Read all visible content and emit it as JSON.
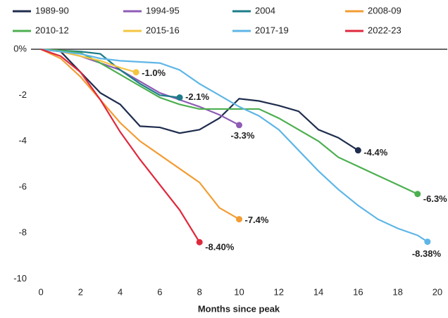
{
  "chart_data": {
    "type": "line",
    "xlabel": "Months since peak",
    "xlim": [
      -0.5,
      20.5
    ],
    "xticks": [
      0,
      2,
      4,
      6,
      8,
      10,
      12,
      14,
      16,
      18,
      20
    ],
    "ylim": [
      -10.2,
      0.4
    ],
    "yticks": [
      {
        "value": 0,
        "label": "0%"
      },
      -2,
      -4,
      -6,
      -8,
      -10
    ],
    "grid": false,
    "legend": "top",
    "series": [
      {
        "name": "1989-90",
        "color": "#1f2d4e",
        "x": [
          0,
          1,
          2,
          3,
          4,
          5,
          6,
          7,
          8,
          9,
          10,
          11,
          12,
          13,
          14,
          15,
          16
        ],
        "values": [
          0,
          -0.1,
          -1.0,
          -1.9,
          -2.4,
          -3.35,
          -3.4,
          -3.65,
          -3.5,
          -3.0,
          -2.15,
          -2.25,
          -2.45,
          -2.7,
          -3.5,
          -3.85,
          -4.4
        ],
        "value_labels": [
          null,
          null,
          null,
          null,
          null,
          null,
          null,
          null,
          null,
          null,
          null,
          null,
          null,
          null,
          null,
          null,
          "-4.4%"
        ]
      },
      {
        "name": "1994-95",
        "color": "#8e5bb5",
        "x": [
          0,
          1,
          2,
          3,
          4,
          5,
          6,
          7,
          8,
          9,
          10
        ],
        "values": [
          0,
          -0.1,
          -0.3,
          -0.6,
          -0.9,
          -1.4,
          -1.9,
          -2.2,
          -2.5,
          -2.85,
          -3.3
        ],
        "value_labels": [
          null,
          null,
          null,
          null,
          null,
          null,
          null,
          null,
          null,
          null,
          "-3.3%"
        ]
      },
      {
        "name": "2004",
        "color": "#1c7c89",
        "x": [
          0,
          1,
          2,
          3,
          4,
          5,
          6,
          7
        ],
        "values": [
          0,
          -0.05,
          -0.1,
          -0.2,
          -0.9,
          -1.5,
          -2.0,
          -2.1
        ],
        "value_labels": [
          null,
          null,
          null,
          null,
          null,
          null,
          null,
          "-2.1%"
        ]
      },
      {
        "name": "2008-09",
        "color": "#f39c33",
        "x": [
          0,
          1,
          2,
          3,
          4,
          5,
          6,
          7,
          8,
          9,
          10
        ],
        "values": [
          0,
          -0.4,
          -1.2,
          -2.2,
          -3.2,
          -4.0,
          -4.6,
          -5.2,
          -5.8,
          -6.9,
          -7.4
        ],
        "value_labels": [
          null,
          null,
          null,
          null,
          null,
          null,
          null,
          null,
          null,
          null,
          "-7.4%"
        ]
      },
      {
        "name": "2010-12",
        "color": "#4caf50",
        "x": [
          0,
          1,
          2,
          3,
          4,
          5,
          6,
          7,
          8,
          9,
          10,
          11,
          12,
          13,
          14,
          15,
          16,
          17,
          18,
          19
        ],
        "values": [
          0,
          -0.05,
          -0.15,
          -0.6,
          -1.1,
          -1.6,
          -2.1,
          -2.4,
          -2.6,
          -2.6,
          -2.6,
          -2.6,
          -3.0,
          -3.5,
          -4.0,
          -4.7,
          -5.1,
          -5.5,
          -5.9,
          -6.3
        ],
        "value_labels": [
          null,
          null,
          null,
          null,
          null,
          null,
          null,
          null,
          null,
          null,
          null,
          null,
          null,
          null,
          null,
          null,
          null,
          null,
          null,
          "-6.3%"
        ]
      },
      {
        "name": "2015-16",
        "color": "#f4c542",
        "x": [
          0,
          1,
          2,
          3,
          4,
          4.8
        ],
        "values": [
          0,
          -0.1,
          -0.3,
          -0.5,
          -0.8,
          -1.0
        ],
        "value_labels": [
          null,
          null,
          null,
          null,
          null,
          "-1.0%"
        ]
      },
      {
        "name": "2017-19",
        "color": "#5fb6e6",
        "x": [
          0,
          1,
          2,
          3,
          4,
          5,
          6,
          7,
          8,
          9,
          10,
          11,
          12,
          13,
          14,
          15,
          16,
          17,
          18,
          19,
          19.5
        ],
        "values": [
          0,
          -0.1,
          -0.2,
          -0.4,
          -0.5,
          -0.55,
          -0.6,
          -0.9,
          -1.5,
          -2.0,
          -2.5,
          -2.9,
          -3.5,
          -4.4,
          -5.3,
          -6.1,
          -6.8,
          -7.4,
          -7.8,
          -8.1,
          -8.38
        ],
        "value_labels": [
          null,
          null,
          null,
          null,
          null,
          null,
          null,
          null,
          null,
          null,
          null,
          null,
          null,
          null,
          null,
          null,
          null,
          null,
          null,
          null,
          "-8.38%"
        ]
      },
      {
        "name": "2022-23",
        "color": "#e0283c",
        "x": [
          0,
          1,
          2,
          3,
          4,
          5,
          6,
          7,
          8
        ],
        "values": [
          0,
          -0.3,
          -1.0,
          -2.2,
          -3.6,
          -4.8,
          -5.9,
          -7.0,
          -8.4
        ],
        "value_labels": [
          null,
          null,
          null,
          null,
          null,
          null,
          null,
          null,
          "-8.40%"
        ]
      }
    ]
  }
}
